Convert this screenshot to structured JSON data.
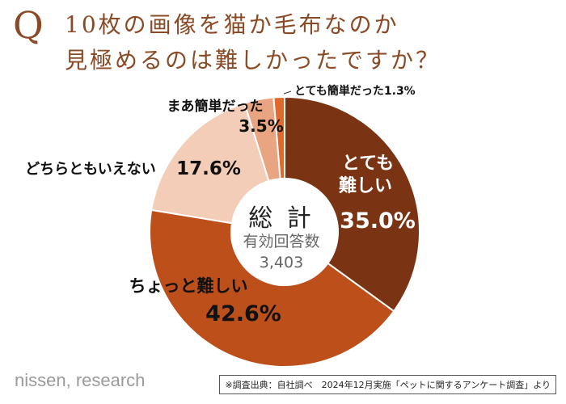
{
  "title": {
    "q": "Q",
    "line1": "10枚の画像を猫か毛布なのか",
    "line2": "見極めるのは難しかったですか？"
  },
  "chart_data": {
    "type": "pie",
    "donut": true,
    "center": {
      "title": "総 計",
      "subtitle": "有効回答数",
      "count": "3,403"
    },
    "slices": [
      {
        "label": "とても難しい",
        "value": 35.0,
        "value_label": "35.0%",
        "color": "#7b3413"
      },
      {
        "label": "ちょっと難しい",
        "value": 42.6,
        "value_label": "42.6%",
        "color": "#bd4f1a"
      },
      {
        "label": "どちらともいえない",
        "value": 17.6,
        "value_label": "17.6%",
        "color": "#f3cdb7"
      },
      {
        "label": "まあ簡単だった",
        "value": 3.5,
        "value_label": "3.5%",
        "color": "#e9a482"
      },
      {
        "label": "とても簡単だった",
        "value": 1.3,
        "value_label": "1.3%",
        "color": "#e06a2d"
      }
    ]
  },
  "brand": "nissen, research",
  "footnote": "※調査出典：自社調べ　2024年12月実施「ペットに関するアンケート調査」より"
}
